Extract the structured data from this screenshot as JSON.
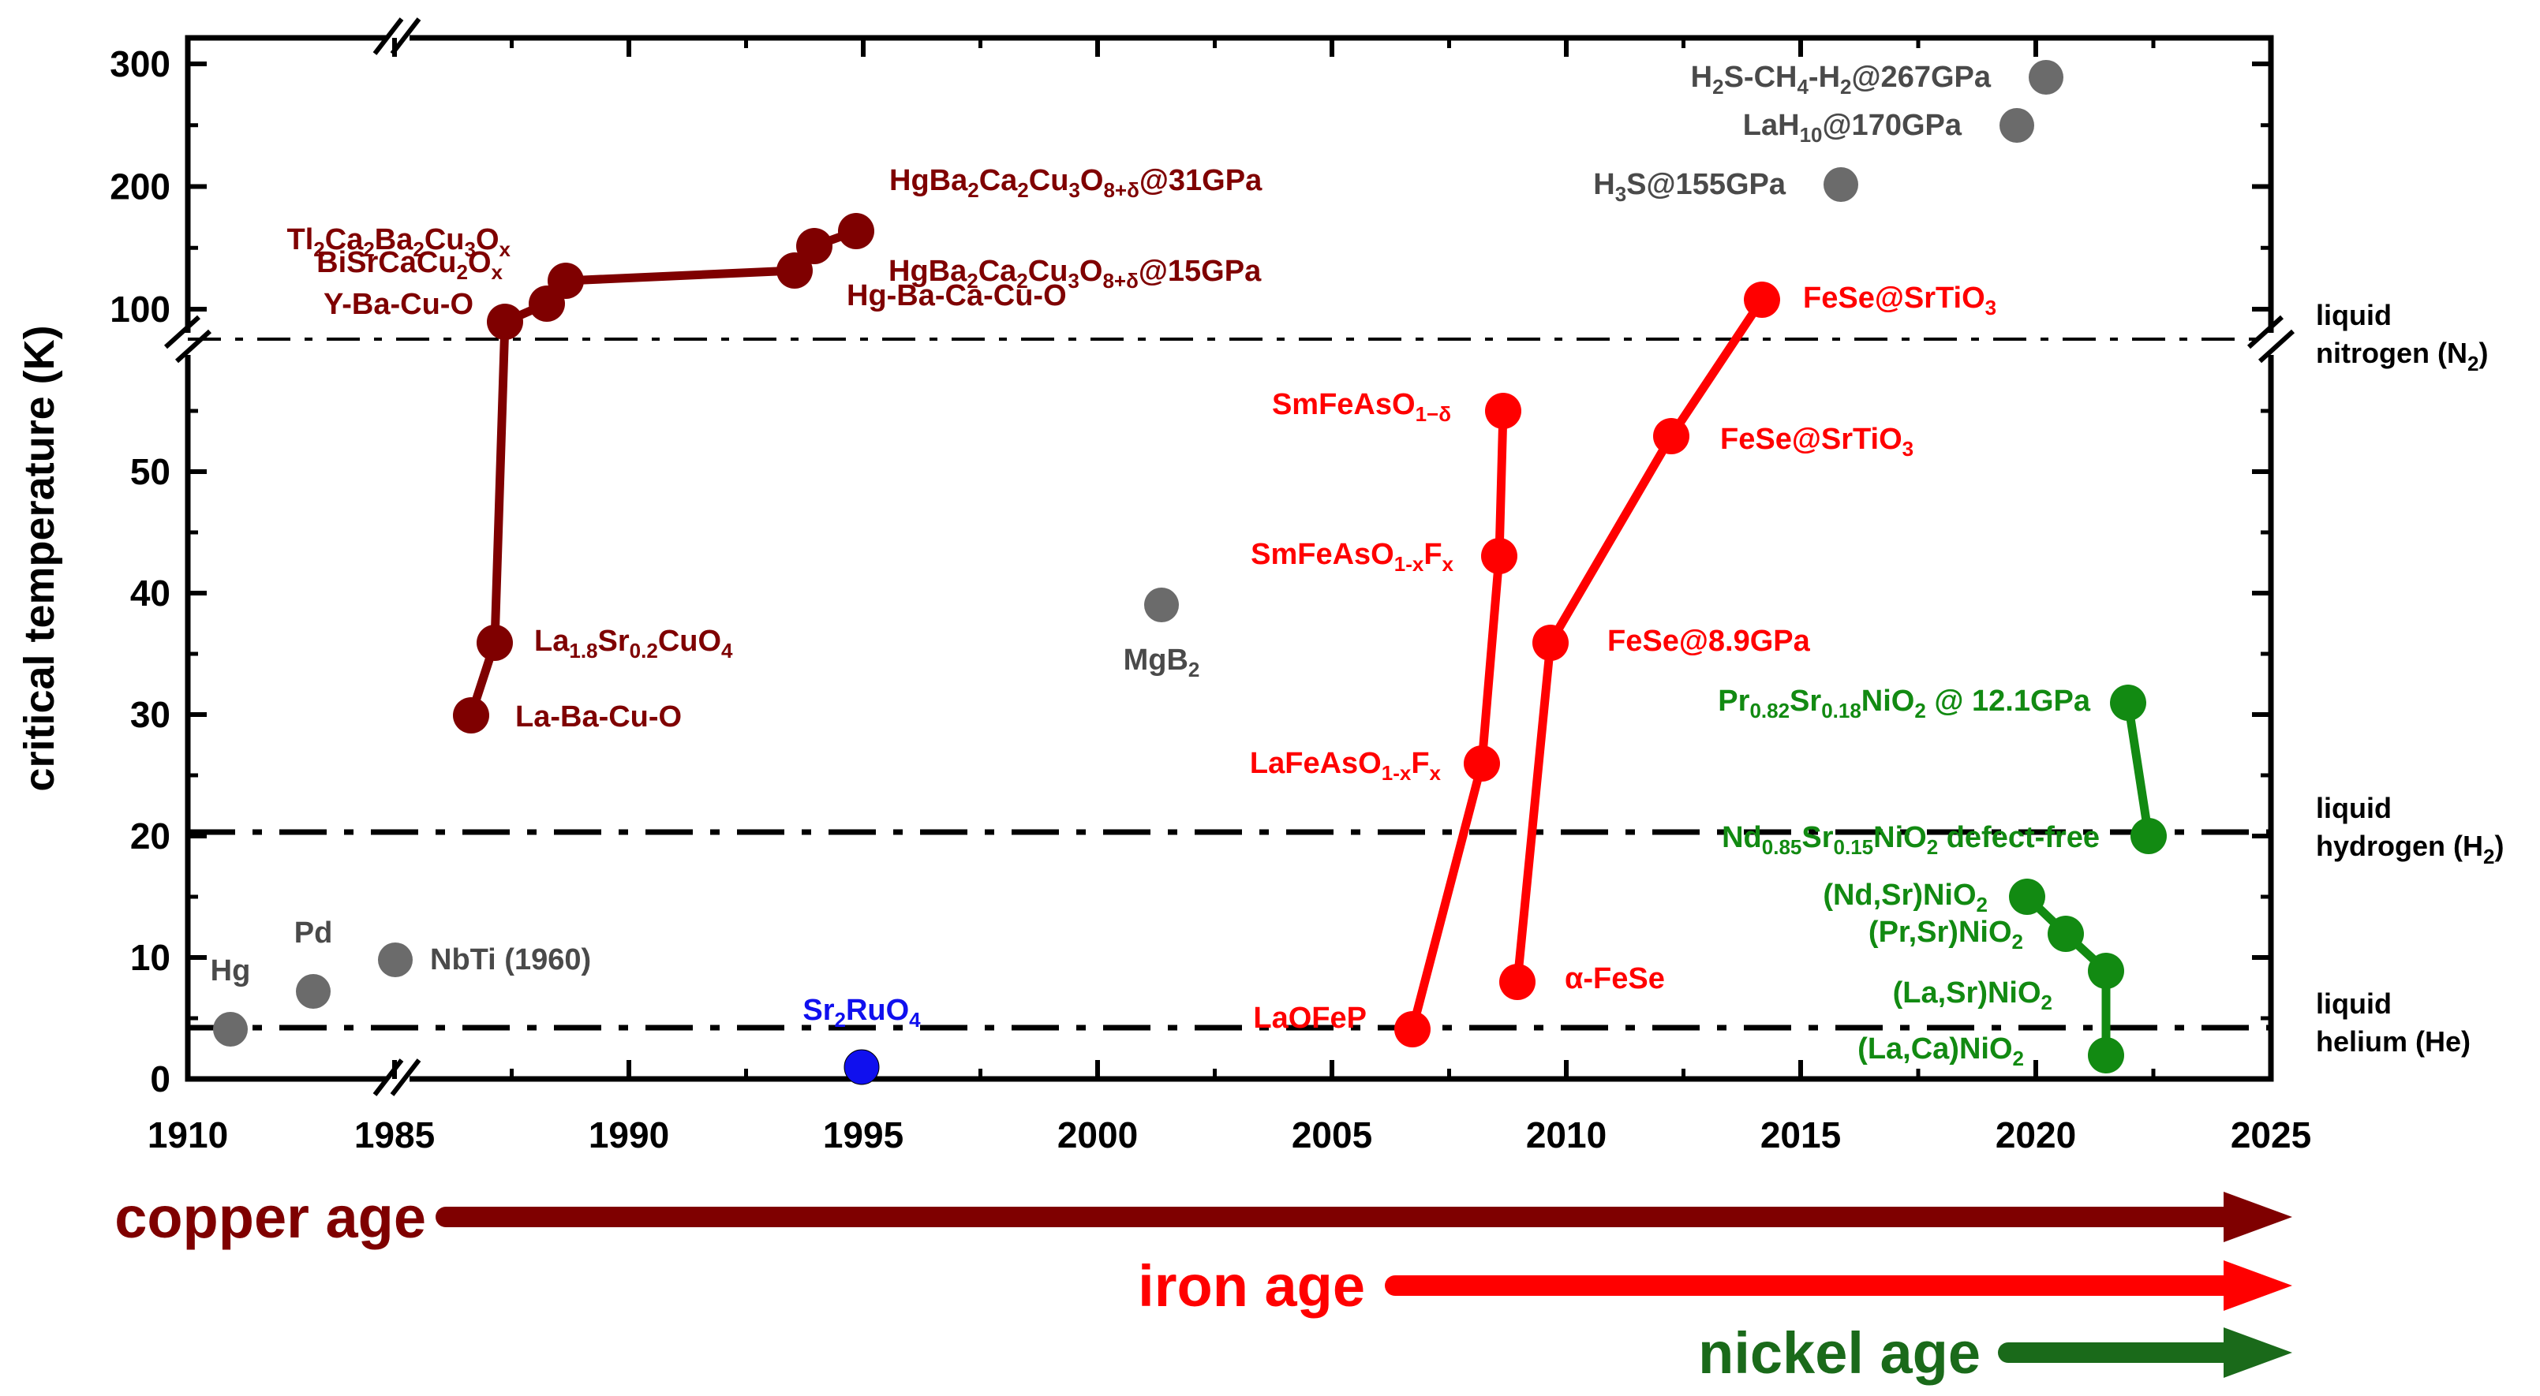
{
  "chart_data": {
    "type": "scatter",
    "ylabel": "critical temperature (K)",
    "x_ticks": [
      "1910",
      "1985",
      "1990",
      "1995",
      "2000",
      "2005",
      "2010",
      "2015",
      "2020",
      "2025"
    ],
    "y_ticks_lower": [
      "0",
      "10",
      "20",
      "30",
      "40",
      "50"
    ],
    "y_ticks_upper": [
      "100",
      "200",
      "300"
    ],
    "axis_segments": {
      "x_break": [
        1910,
        1985
      ],
      "x_main": [
        1985,
        2025
      ],
      "y_lower": [
        0,
        57
      ],
      "y_upper": [
        77,
        300
      ]
    },
    "colors": {
      "cuprate": "#7f0000",
      "iron": "#ff0000",
      "nickel": "#128a12",
      "classic": "#6b6b6b",
      "classic_text": "#4a4a4a",
      "ruthenate": "#1010ee"
    },
    "reference_lines": [
      {
        "name": "liquid-nitrogen",
        "T": 77,
        "label_lines": [
          "liquid",
          "nitrogen (N",
          "2",
          ")"
        ]
      },
      {
        "name": "liquid-hydrogen",
        "T": 20.3,
        "label_lines": [
          "liquid",
          "hydrogen (H",
          "2",
          ")"
        ]
      },
      {
        "name": "liquid-helium",
        "T": 4.2,
        "label_lines": [
          "liquid",
          "helium (He)"
        ]
      }
    ],
    "series": [
      {
        "name": "cuprates",
        "color_key": "cuprate",
        "connected": true,
        "points": [
          {
            "x": 1986.0,
            "y": 30,
            "label": [
              [
                "La-Ba-Cu-O",
                "n"
              ]
            ],
            "anchor": "start"
          },
          {
            "x": 1986.5,
            "y": 36,
            "label": [
              [
                "La",
                "n"
              ],
              [
                "1.8",
                "s"
              ],
              [
                "Sr",
                "n"
              ],
              [
                "0.2",
                "s"
              ],
              [
                "CuO",
                "n"
              ],
              [
                "4",
                "s"
              ]
            ],
            "anchor": "start"
          },
          {
            "x": 1987.0,
            "y": 93,
            "label": [
              [
                "Y-Ba-Cu-O",
                "n"
              ]
            ],
            "anchor": "end"
          },
          {
            "x": 1988.0,
            "y": 105,
            "label": [
              [
                "BiSrCaCu",
                "n"
              ],
              [
                "2",
                "s"
              ],
              [
                "O",
                "n"
              ],
              [
                "x",
                "s"
              ]
            ],
            "anchor": "end"
          },
          {
            "x": 1988.5,
            "y": 125,
            "label": [
              [
                "Tl",
                "n"
              ],
              [
                "2",
                "s"
              ],
              [
                "Ca",
                "n"
              ],
              [
                "2",
                "s"
              ],
              [
                "Ba",
                "n"
              ],
              [
                "2",
                "s"
              ],
              [
                "Cu",
                "n"
              ],
              [
                "3",
                "s"
              ],
              [
                "O",
                "n"
              ],
              [
                "x",
                "s"
              ]
            ],
            "anchor": "end"
          },
          {
            "x": 1993.3,
            "y": 133,
            "label": [
              [
                "Hg-Ba-Ca-Cu-O",
                "n"
              ]
            ],
            "anchor": "start"
          },
          {
            "x": 1994.0,
            "y": 153,
            "label": [
              [
                "HgBa",
                "n"
              ],
              [
                "2",
                "s"
              ],
              [
                "Ca",
                "n"
              ],
              [
                "2",
                "s"
              ],
              [
                "Cu",
                "n"
              ],
              [
                "3",
                "s"
              ],
              [
                "O",
                "n"
              ],
              [
                "8+δ",
                "s"
              ],
              [
                "@15GPa",
                "n"
              ]
            ],
            "anchor": "start"
          },
          {
            "x": 1994.7,
            "y": 164,
            "label": [
              [
                "HgBa",
                "n"
              ],
              [
                "2",
                "s"
              ],
              [
                "Ca",
                "n"
              ],
              [
                "2",
                "s"
              ],
              [
                "Cu",
                "n"
              ],
              [
                "3",
                "s"
              ],
              [
                "O",
                "n"
              ],
              [
                "8+δ",
                "s"
              ],
              [
                "@31GPa",
                "n"
              ]
            ],
            "anchor": "start"
          }
        ]
      },
      {
        "name": "SmFeAsO",
        "color_key": "iron",
        "connected": true,
        "points": [
          {
            "x": 2006.0,
            "y": 4,
            "label": [
              [
                "LaOFeP",
                "n"
              ]
            ],
            "anchor": "end"
          },
          {
            "x": 2007.5,
            "y": 26,
            "label": [
              [
                "LaFeAsO",
                "n"
              ],
              [
                "1-x",
                "s"
              ],
              [
                "F",
                "n"
              ],
              [
                "x",
                "s"
              ]
            ],
            "anchor": "end"
          },
          {
            "x": 2007.8,
            "y": 43,
            "label": [
              [
                "SmFeAsO",
                "n"
              ],
              [
                "1-x",
                "s"
              ],
              [
                "F",
                "n"
              ],
              [
                "x",
                "s"
              ]
            ],
            "anchor": "end"
          },
          {
            "x": 2008.0,
            "y": 55,
            "label": [
              [
                "SmFeAsO",
                "n"
              ],
              [
                "1−δ",
                "s"
              ]
            ],
            "anchor": "end"
          }
        ]
      },
      {
        "name": "FeSe",
        "color_key": "iron",
        "connected": true,
        "points": [
          {
            "x": 2008.3,
            "y": 8,
            "label": [
              [
                "α-FeSe",
                "n"
              ]
            ],
            "anchor": "start"
          },
          {
            "x": 2009.0,
            "y": 36,
            "label": [
              [
                "FeSe@8.9GPa",
                "n"
              ]
            ],
            "anchor": "start"
          },
          {
            "x": 2011.8,
            "y": 53,
            "label": [
              [
                "FeSe@SrTiO",
                "n"
              ],
              [
                "3",
                "s"
              ]
            ],
            "anchor": "start"
          },
          {
            "x": 2013.8,
            "y": 107,
            "label": [
              [
                "FeSe@SrTiO",
                "n"
              ],
              [
                "3",
                "s"
              ]
            ],
            "anchor": "start"
          }
        ]
      },
      {
        "name": "nickelates-infinite-layer",
        "color_key": "nickel",
        "connected": true,
        "points": [
          {
            "x": 2020.0,
            "y": 15,
            "label": [
              [
                "(Nd,Sr)NiO",
                "n"
              ],
              [
                "2",
                "s"
              ]
            ],
            "anchor": "end"
          },
          {
            "x": 2020.8,
            "y": 12,
            "label": [
              [
                "(Pr,Sr)NiO",
                "n"
              ],
              [
                "2",
                "s"
              ]
            ],
            "anchor": "end"
          },
          {
            "x": 2021.7,
            "y": 9,
            "label": [
              [
                "(La,Sr)NiO",
                "n"
              ],
              [
                "2",
                "s"
              ]
            ],
            "anchor": "end"
          },
          {
            "x": 2021.7,
            "y": 2,
            "label": [
              [
                "(La,Ca)NiO",
                "n"
              ],
              [
                "2",
                "s"
              ]
            ],
            "anchor": "end"
          }
        ]
      },
      {
        "name": "nickelates-pressure",
        "color_key": "nickel",
        "connected": true,
        "points": [
          {
            "x": 2022.0,
            "y": 31,
            "label": [
              [
                "Pr",
                "n"
              ],
              [
                "0.82",
                "s"
              ],
              [
                "Sr",
                "n"
              ],
              [
                "0.18",
                "s"
              ],
              [
                "NiO",
                "n"
              ],
              [
                "2",
                "s"
              ],
              [
                " @ 12.1GPa",
                "n"
              ]
            ],
            "anchor": "end"
          },
          {
            "x": 2022.4,
            "y": 20,
            "label": [
              [
                "Nd",
                "n"
              ],
              [
                "0.85",
                "s"
              ],
              [
                "Sr",
                "n"
              ],
              [
                "0.15",
                "s"
              ],
              [
                "NiO",
                "n"
              ],
              [
                "2",
                "s"
              ],
              [
                " defect-free",
                "n"
              ]
            ],
            "anchor": "end"
          }
        ]
      },
      {
        "name": "conventional",
        "color_key": "classic",
        "connected": false,
        "points": [
          {
            "x": 1911,
            "y": 4.2,
            "label": [
              [
                "Hg",
                "n"
              ]
            ],
            "anchor": "middle"
          },
          {
            "x": 1933,
            "y": 7.2,
            "label": [
              [
                "Pd",
                "n"
              ]
            ],
            "anchor": "middle"
          },
          {
            "x": 1960,
            "y": 9.8,
            "label": [
              [
                "NbTi (1960)",
                "n"
              ]
            ],
            "anchor": "start"
          },
          {
            "x": 2001.0,
            "y": 39,
            "label": [
              [
                "MgB",
                "n"
              ],
              [
                "2",
                "s"
              ]
            ],
            "anchor": "middle"
          },
          {
            "x": 2015.0,
            "y": 203,
            "label": [
              [
                "H",
                "n"
              ],
              [
                "3",
                "s"
              ],
              [
                "S@155GPa",
                "n"
              ]
            ],
            "anchor": "end"
          },
          {
            "x": 2019.0,
            "y": 250,
            "label": [
              [
                "LaH",
                "n"
              ],
              [
                "10",
                "s"
              ],
              [
                "@170GPa",
                "n"
              ]
            ],
            "anchor": "end"
          },
          {
            "x": 2020.3,
            "y": 288,
            "label": [
              [
                "H",
                "n"
              ],
              [
                "2",
                "s"
              ],
              [
                "S-CH",
                "n"
              ],
              [
                "4",
                "s"
              ],
              [
                "-H",
                "n"
              ],
              [
                "2",
                "s"
              ],
              [
                "@267GPa",
                "n"
              ]
            ],
            "anchor": "end"
          }
        ]
      },
      {
        "name": "ruthenate",
        "color_key": "ruthenate",
        "connected": false,
        "points": [
          {
            "x": 1994.0,
            "y": 1,
            "label": [
              [
                "Sr",
                "n"
              ],
              [
                "2",
                "s"
              ],
              [
                "RuO",
                "n"
              ],
              [
                "4",
                "s"
              ]
            ],
            "anchor": "middle"
          }
        ]
      }
    ],
    "ages": [
      {
        "name": "copper-age",
        "label": "copper age",
        "start_year": 1986,
        "color": "#7f0000"
      },
      {
        "name": "iron-age",
        "label": "iron age",
        "start_year": 2006,
        "color": "#ff0000"
      },
      {
        "name": "nickel-age",
        "label": "nickel age",
        "start_year": 2019,
        "color": "#1a6a1a"
      }
    ]
  }
}
